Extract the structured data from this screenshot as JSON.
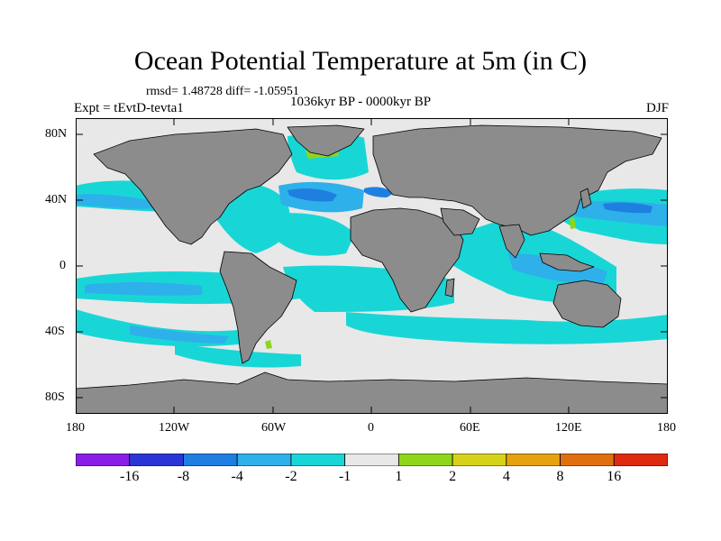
{
  "title": "Ocean Potential Temperature at 5m (in C)",
  "stats": "rmsd= 1.48728 diff= -1.05951",
  "experiment": "Expt = tEvtD-tevta1",
  "period": "1036kyr BP - 0000kyr BP",
  "season": "DJF",
  "lat_labels": [
    "80N",
    "40N",
    "0",
    "40S",
    "80S"
  ],
  "lon_labels": [
    "180",
    "120W",
    "60W",
    "0",
    "60E",
    "120E",
    "180"
  ],
  "colorbar": {
    "labels": [
      "-16",
      "-8",
      "-4",
      "-2",
      "-1",
      "1",
      "2",
      "4",
      "8",
      "16"
    ],
    "colors": [
      "#8a1ee6",
      "#2b35d6",
      "#1f7fe0",
      "#2eb0ea",
      "#19d6d6",
      "#e8e8e8",
      "#8ed61b",
      "#d6d21a",
      "#e6a20e",
      "#e0700f",
      "#df2a12"
    ]
  },
  "colors": {
    "land": "#8c8c8c",
    "coast": "#000000"
  }
}
